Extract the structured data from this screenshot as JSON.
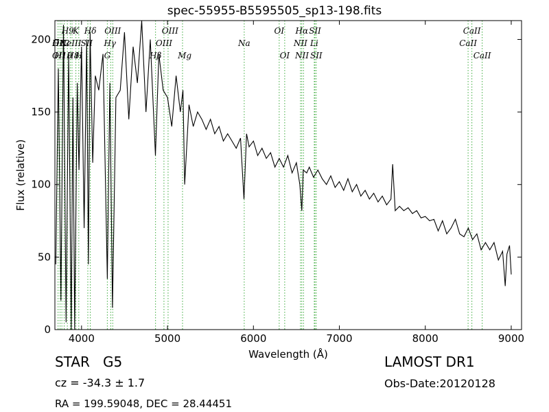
{
  "chart_data": {
    "type": "line",
    "title": "spec-55955-B5595505_sp13-198.fits",
    "xlabel": "Wavelength (Å)",
    "ylabel": "Flux (relative)",
    "xlim": [
      3690,
      9120
    ],
    "ylim": [
      0,
      213
    ],
    "xticks": [
      4000,
      5000,
      6000,
      7000,
      8000,
      9000
    ],
    "yticks": [
      0,
      50,
      100,
      150,
      200
    ],
    "grid": false,
    "series_color": "#000000",
    "line_marker_color": "#3aaa3a",
    "series": [
      {
        "x": [
          3700,
          3730,
          3760,
          3790,
          3820,
          3850,
          3880,
          3900,
          3920,
          3950,
          3970,
          4000,
          4030,
          4060,
          4080,
          4100,
          4130,
          4160,
          4200,
          4250,
          4300,
          4330,
          4360,
          4400,
          4450,
          4500,
          4550,
          4600,
          4650,
          4700,
          4750,
          4800,
          4860,
          4900,
          4950,
          5000,
          5050,
          5100,
          5150,
          5180,
          5200,
          5250,
          5300,
          5350,
          5400,
          5450,
          5500,
          5550,
          5600,
          5650,
          5700,
          5750,
          5800,
          5850,
          5890,
          5920,
          5950,
          6000,
          6050,
          6100,
          6150,
          6200,
          6250,
          6300,
          6350,
          6400,
          6450,
          6500,
          6540,
          6563,
          6580,
          6620,
          6650,
          6700,
          6750,
          6800,
          6850,
          6900,
          6950,
          7000,
          7050,
          7100,
          7150,
          7200,
          7250,
          7300,
          7350,
          7400,
          7450,
          7500,
          7550,
          7600,
          7620,
          7650,
          7700,
          7750,
          7800,
          7850,
          7900,
          7950,
          8000,
          8050,
          8100,
          8150,
          8200,
          8250,
          8300,
          8350,
          8400,
          8450,
          8500,
          8550,
          8600,
          8650,
          8700,
          8750,
          8800,
          8850,
          8900,
          8930,
          8950,
          8980,
          9000
        ],
        "y": [
          45,
          180,
          20,
          210,
          5,
          190,
          0,
          160,
          0,
          170,
          110,
          195,
          70,
          200,
          45,
          205,
          115,
          175,
          165,
          190,
          35,
          170,
          15,
          160,
          165,
          205,
          145,
          195,
          170,
          215,
          150,
          200,
          120,
          190,
          165,
          160,
          140,
          175,
          150,
          165,
          100,
          155,
          140,
          150,
          145,
          138,
          145,
          135,
          140,
          130,
          135,
          130,
          125,
          132,
          90,
          135,
          126,
          130,
          120,
          125,
          118,
          122,
          112,
          118,
          112,
          120,
          108,
          115,
          100,
          82,
          110,
          108,
          112,
          105,
          110,
          104,
          100,
          106,
          98,
          102,
          96,
          104,
          95,
          100,
          92,
          96,
          90,
          94,
          88,
          92,
          86,
          90,
          114,
          82,
          85,
          82,
          84,
          80,
          82,
          77,
          78,
          75,
          76,
          68,
          75,
          66,
          70,
          76,
          66,
          64,
          70,
          62,
          66,
          55,
          60,
          55,
          60,
          48,
          54,
          30,
          52,
          58,
          38
        ]
      }
    ],
    "lines": [
      {
        "x": 3727,
        "tag": "OII"
      },
      {
        "x": 3750,
        "tag": "H12"
      },
      {
        "x": 3771,
        "tag": "H11"
      },
      {
        "x": 3798,
        "tag": "H10"
      },
      {
        "x": 3835,
        "tag": "H9"
      },
      {
        "x": 3869,
        "tag": "NeIII"
      },
      {
        "x": 3889,
        "tag": "H8"
      },
      {
        "x": 3934,
        "tag": "K"
      },
      {
        "x": 3968,
        "tag": "H"
      },
      {
        "x": 4073,
        "tag": "SII"
      },
      {
        "x": 4102,
        "tag": "Hδ"
      },
      {
        "x": 4300,
        "tag": "G"
      },
      {
        "x": 4340,
        "tag": "Hγ"
      },
      {
        "x": 4363,
        "tag": "OIII"
      },
      {
        "x": 4861,
        "tag": "Hβ"
      },
      {
        "x": 4959,
        "tag": "OIII"
      },
      {
        "x": 5007,
        "tag": "OIII"
      },
      {
        "x": 5175,
        "tag": "Mg"
      },
      {
        "x": 5893,
        "tag": "Na"
      },
      {
        "x": 6300,
        "tag": "OI"
      },
      {
        "x": 6364,
        "tag": "OI"
      },
      {
        "x": 6548,
        "tag": "NII"
      },
      {
        "x": 6563,
        "tag": "Hα"
      },
      {
        "x": 6583,
        "tag": "NII"
      },
      {
        "x": 6708,
        "tag": "Li"
      },
      {
        "x": 6716,
        "tag": "SII"
      },
      {
        "x": 6731,
        "tag": "SII"
      },
      {
        "x": 8498,
        "tag": "CaII"
      },
      {
        "x": 8542,
        "tag": "CaII"
      },
      {
        "x": 8662,
        "tag": "CaII"
      }
    ],
    "line_labels": [
      {
        "x": 3740,
        "text": "OII",
        "row": 2
      },
      {
        "x": 3735,
        "text": "OII",
        "row": 3
      },
      {
        "x": 3840,
        "text": "H9",
        "row": 1
      },
      {
        "x": 3760,
        "text": "H12",
        "row": 2
      },
      {
        "x": 3790,
        "text": "H10",
        "row": 3
      },
      {
        "x": 3870,
        "text": "NeIII",
        "row": 2
      },
      {
        "x": 3900,
        "text": "H8",
        "row": 3
      },
      {
        "x": 3934,
        "text": "K",
        "row": 1
      },
      {
        "x": 3968,
        "text": "H",
        "row": 3
      },
      {
        "x": 4060,
        "text": "SII",
        "row": 2
      },
      {
        "x": 4102,
        "text": "Hδ",
        "row": 1
      },
      {
        "x": 4300,
        "text": "G",
        "row": 3
      },
      {
        "x": 4330,
        "text": "Hγ",
        "row": 2
      },
      {
        "x": 4363,
        "text": "OIII",
        "row": 1
      },
      {
        "x": 4861,
        "text": "Hβ",
        "row": 3
      },
      {
        "x": 4959,
        "text": "OIII",
        "row": 2
      },
      {
        "x": 5030,
        "text": "OIII",
        "row": 1
      },
      {
        "x": 5200,
        "text": "Mg",
        "row": 3
      },
      {
        "x": 5893,
        "text": "Na",
        "row": 2
      },
      {
        "x": 6300,
        "text": "OI",
        "row": 1
      },
      {
        "x": 6364,
        "text": "OI",
        "row": 3
      },
      {
        "x": 6548,
        "text": "NII",
        "row": 2
      },
      {
        "x": 6563,
        "text": "Hα",
        "row": 1
      },
      {
        "x": 6565,
        "text": "NII",
        "row": 3
      },
      {
        "x": 6708,
        "text": "Li",
        "row": 2
      },
      {
        "x": 6716,
        "text": "SII",
        "row": 1
      },
      {
        "x": 6731,
        "text": "SII",
        "row": 3
      },
      {
        "x": 8498,
        "text": "CaII",
        "row": 2
      },
      {
        "x": 8542,
        "text": "CaII",
        "row": 1
      },
      {
        "x": 8662,
        "text": "CaII",
        "row": 3
      }
    ]
  },
  "info": {
    "class_label": "STAR   G5",
    "cz": "cz = -34.3 ± 1.7",
    "radec": "RA = 199.59048, DEC = 28.44451",
    "survey": "LAMOST DR1",
    "obs_date": "Obs-Date:20120128"
  }
}
